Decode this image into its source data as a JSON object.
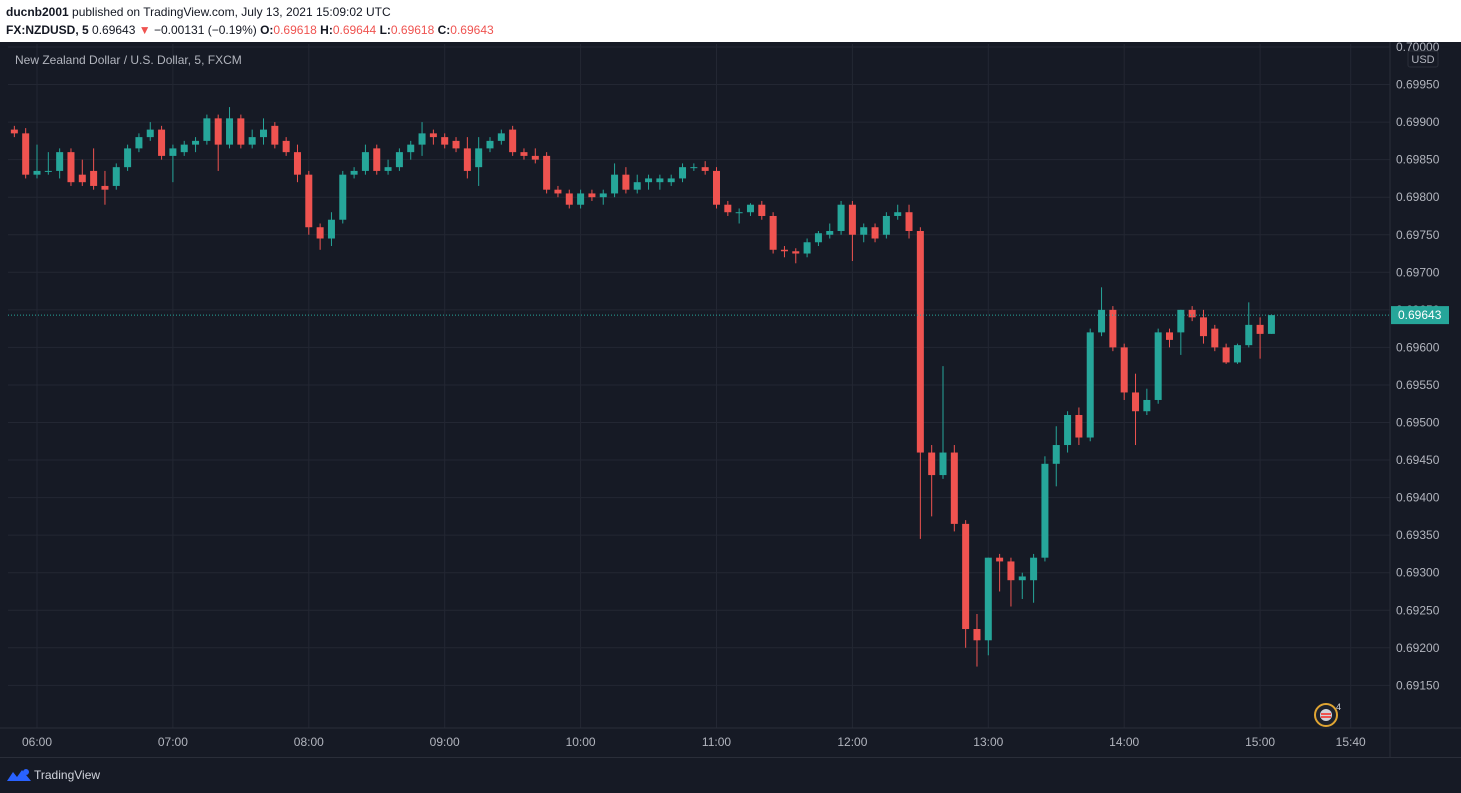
{
  "header": {
    "author": "ducnb2001",
    "published_text": " published on TradingView.com, July 13, 2021 15:09:02 UTC",
    "symbol_interval": "FX:NZDUSD, 5",
    "last_price": "0.69643",
    "change_arrow": "▼",
    "change": "−0.00131 (−0.19%)",
    "o_label": "O:",
    "o_value": "0.69618",
    "h_label": "H:",
    "h_value": "0.69644",
    "l_label": "L:",
    "l_value": "0.69618",
    "c_label": "C:",
    "c_value": "0.69643"
  },
  "chart_title": "New Zealand Dollar / U.S. Dollar, 5, FXCM",
  "footer": {
    "brand": "TradingView"
  },
  "events_count": "4",
  "colors": {
    "background": "#161a25",
    "grid": "#232733",
    "up": "#26a69a",
    "down": "#ef5350",
    "axis_text": "#b2b5be",
    "last_price_badge": "#26a69a"
  },
  "chart_data": {
    "type": "candlestick",
    "title": "New Zealand Dollar / U.S. Dollar, 5, FXCM",
    "symbol": "FX:NZDUSD",
    "interval_minutes": 5,
    "y_axis_unit": "USD",
    "ylim": [
      0.6911,
      0.7
    ],
    "y_ticks": [
      "0.70000",
      "0.69950",
      "0.69900",
      "0.69850",
      "0.69800",
      "0.69750",
      "0.69700",
      "0.69650",
      "0.69600",
      "0.69550",
      "0.69500",
      "0.69450",
      "0.69400",
      "0.69350",
      "0.69300",
      "0.69250",
      "0.69200",
      "0.69150"
    ],
    "x_start": "05:50",
    "x_ticks": [
      "06:00",
      "07:00",
      "08:00",
      "09:00",
      "10:00",
      "11:00",
      "12:00",
      "13:00",
      "14:00",
      "15:00",
      "15:40"
    ],
    "last_price": "0.69643",
    "grid": true,
    "candles": [
      {
        "t": "05:50",
        "o": 0.6989,
        "h": 0.69895,
        "l": 0.6988,
        "c": 0.69885
      },
      {
        "t": "05:55",
        "o": 0.69885,
        "h": 0.69892,
        "l": 0.69825,
        "c": 0.6983
      },
      {
        "t": "06:00",
        "o": 0.6983,
        "h": 0.6987,
        "l": 0.69825,
        "c": 0.69835
      },
      {
        "t": "06:05",
        "o": 0.69835,
        "h": 0.6986,
        "l": 0.6983,
        "c": 0.69835
      },
      {
        "t": "06:10",
        "o": 0.69835,
        "h": 0.69865,
        "l": 0.69825,
        "c": 0.6986
      },
      {
        "t": "06:15",
        "o": 0.6986,
        "h": 0.69865,
        "l": 0.69815,
        "c": 0.6982
      },
      {
        "t": "06:20",
        "o": 0.6983,
        "h": 0.6985,
        "l": 0.69815,
        "c": 0.6982
      },
      {
        "t": "06:25",
        "o": 0.69835,
        "h": 0.69865,
        "l": 0.6981,
        "c": 0.69815
      },
      {
        "t": "06:30",
        "o": 0.69815,
        "h": 0.69835,
        "l": 0.6979,
        "c": 0.6981
      },
      {
        "t": "06:35",
        "o": 0.69815,
        "h": 0.69845,
        "l": 0.6981,
        "c": 0.6984
      },
      {
        "t": "06:40",
        "o": 0.6984,
        "h": 0.6987,
        "l": 0.69835,
        "c": 0.69865
      },
      {
        "t": "06:45",
        "o": 0.69865,
        "h": 0.69885,
        "l": 0.6986,
        "c": 0.6988
      },
      {
        "t": "06:50",
        "o": 0.6988,
        "h": 0.699,
        "l": 0.69875,
        "c": 0.6989
      },
      {
        "t": "06:55",
        "o": 0.6989,
        "h": 0.69895,
        "l": 0.6985,
        "c": 0.69855
      },
      {
        "t": "07:00",
        "o": 0.69855,
        "h": 0.6987,
        "l": 0.6982,
        "c": 0.69865
      },
      {
        "t": "07:05",
        "o": 0.6986,
        "h": 0.69875,
        "l": 0.69855,
        "c": 0.6987
      },
      {
        "t": "07:10",
        "o": 0.6987,
        "h": 0.6988,
        "l": 0.6986,
        "c": 0.69875
      },
      {
        "t": "07:15",
        "o": 0.69875,
        "h": 0.6991,
        "l": 0.6987,
        "c": 0.69905
      },
      {
        "t": "07:20",
        "o": 0.69905,
        "h": 0.6991,
        "l": 0.69835,
        "c": 0.6987
      },
      {
        "t": "07:25",
        "o": 0.6987,
        "h": 0.6992,
        "l": 0.69865,
        "c": 0.69905
      },
      {
        "t": "07:30",
        "o": 0.69905,
        "h": 0.6991,
        "l": 0.69865,
        "c": 0.6987
      },
      {
        "t": "07:35",
        "o": 0.6987,
        "h": 0.6989,
        "l": 0.69865,
        "c": 0.6988
      },
      {
        "t": "07:40",
        "o": 0.6988,
        "h": 0.69905,
        "l": 0.6987,
        "c": 0.6989
      },
      {
        "t": "07:45",
        "o": 0.69895,
        "h": 0.699,
        "l": 0.69865,
        "c": 0.6987
      },
      {
        "t": "07:50",
        "o": 0.69875,
        "h": 0.6988,
        "l": 0.69855,
        "c": 0.6986
      },
      {
        "t": "07:55",
        "o": 0.6986,
        "h": 0.6987,
        "l": 0.6982,
        "c": 0.6983
      },
      {
        "t": "08:00",
        "o": 0.6983,
        "h": 0.69835,
        "l": 0.6975,
        "c": 0.6976
      },
      {
        "t": "08:05",
        "o": 0.6976,
        "h": 0.69765,
        "l": 0.6973,
        "c": 0.69745
      },
      {
        "t": "08:10",
        "o": 0.69745,
        "h": 0.6978,
        "l": 0.69735,
        "c": 0.6977
      },
      {
        "t": "08:15",
        "o": 0.6977,
        "h": 0.69835,
        "l": 0.69765,
        "c": 0.6983
      },
      {
        "t": "08:20",
        "o": 0.6983,
        "h": 0.6984,
        "l": 0.69825,
        "c": 0.69835
      },
      {
        "t": "08:25",
        "o": 0.69835,
        "h": 0.6987,
        "l": 0.6983,
        "c": 0.6986
      },
      {
        "t": "08:30",
        "o": 0.69865,
        "h": 0.6987,
        "l": 0.6983,
        "c": 0.69835
      },
      {
        "t": "08:35",
        "o": 0.69835,
        "h": 0.6985,
        "l": 0.6983,
        "c": 0.6984
      },
      {
        "t": "08:40",
        "o": 0.6984,
        "h": 0.69865,
        "l": 0.69835,
        "c": 0.6986
      },
      {
        "t": "08:45",
        "o": 0.6986,
        "h": 0.69875,
        "l": 0.6985,
        "c": 0.6987
      },
      {
        "t": "08:50",
        "o": 0.6987,
        "h": 0.699,
        "l": 0.69855,
        "c": 0.69885
      },
      {
        "t": "08:55",
        "o": 0.69885,
        "h": 0.6989,
        "l": 0.6987,
        "c": 0.6988
      },
      {
        "t": "09:00",
        "o": 0.6988,
        "h": 0.69885,
        "l": 0.69865,
        "c": 0.6987
      },
      {
        "t": "09:05",
        "o": 0.69875,
        "h": 0.6988,
        "l": 0.6986,
        "c": 0.69865
      },
      {
        "t": "09:10",
        "o": 0.69865,
        "h": 0.6988,
        "l": 0.69825,
        "c": 0.69835
      },
      {
        "t": "09:15",
        "o": 0.6984,
        "h": 0.6988,
        "l": 0.69815,
        "c": 0.69865
      },
      {
        "t": "09:20",
        "o": 0.69865,
        "h": 0.6988,
        "l": 0.6986,
        "c": 0.69875
      },
      {
        "t": "09:25",
        "o": 0.69875,
        "h": 0.6989,
        "l": 0.6987,
        "c": 0.69885
      },
      {
        "t": "09:30",
        "o": 0.6989,
        "h": 0.69895,
        "l": 0.69855,
        "c": 0.6986
      },
      {
        "t": "09:35",
        "o": 0.6986,
        "h": 0.69865,
        "l": 0.6985,
        "c": 0.69855
      },
      {
        "t": "09:40",
        "o": 0.69855,
        "h": 0.69865,
        "l": 0.69845,
        "c": 0.6985
      },
      {
        "t": "09:45",
        "o": 0.69855,
        "h": 0.6986,
        "l": 0.69805,
        "c": 0.6981
      },
      {
        "t": "09:50",
        "o": 0.6981,
        "h": 0.69815,
        "l": 0.698,
        "c": 0.69805
      },
      {
        "t": "09:55",
        "o": 0.69805,
        "h": 0.6981,
        "l": 0.69785,
        "c": 0.6979
      },
      {
        "t": "10:00",
        "o": 0.6979,
        "h": 0.6981,
        "l": 0.69785,
        "c": 0.69805
      },
      {
        "t": "10:05",
        "o": 0.69805,
        "h": 0.6981,
        "l": 0.69795,
        "c": 0.698
      },
      {
        "t": "10:10",
        "o": 0.698,
        "h": 0.6981,
        "l": 0.6979,
        "c": 0.69805
      },
      {
        "t": "10:15",
        "o": 0.69805,
        "h": 0.69845,
        "l": 0.698,
        "c": 0.6983
      },
      {
        "t": "10:20",
        "o": 0.6983,
        "h": 0.6984,
        "l": 0.69805,
        "c": 0.6981
      },
      {
        "t": "10:25",
        "o": 0.6981,
        "h": 0.6983,
        "l": 0.69805,
        "c": 0.6982
      },
      {
        "t": "10:30",
        "o": 0.6982,
        "h": 0.6983,
        "l": 0.6981,
        "c": 0.69825
      },
      {
        "t": "10:35",
        "o": 0.6982,
        "h": 0.6983,
        "l": 0.6981,
        "c": 0.69825
      },
      {
        "t": "10:40",
        "o": 0.6982,
        "h": 0.6983,
        "l": 0.69815,
        "c": 0.69825
      },
      {
        "t": "10:45",
        "o": 0.69825,
        "h": 0.69845,
        "l": 0.6982,
        "c": 0.6984
      },
      {
        "t": "10:50",
        "o": 0.6984,
        "h": 0.69845,
        "l": 0.69835,
        "c": 0.6984
      },
      {
        "t": "10:55",
        "o": 0.6984,
        "h": 0.69848,
        "l": 0.6983,
        "c": 0.69835
      },
      {
        "t": "11:00",
        "o": 0.69835,
        "h": 0.6984,
        "l": 0.69785,
        "c": 0.6979
      },
      {
        "t": "11:05",
        "o": 0.6979,
        "h": 0.69795,
        "l": 0.69775,
        "c": 0.6978
      },
      {
        "t": "11:10",
        "o": 0.6978,
        "h": 0.69785,
        "l": 0.69765,
        "c": 0.6978
      },
      {
        "t": "11:15",
        "o": 0.6978,
        "h": 0.69792,
        "l": 0.69775,
        "c": 0.6979
      },
      {
        "t": "11:20",
        "o": 0.6979,
        "h": 0.69795,
        "l": 0.6977,
        "c": 0.69775
      },
      {
        "t": "11:25",
        "o": 0.69775,
        "h": 0.6978,
        "l": 0.69725,
        "c": 0.6973
      },
      {
        "t": "11:30",
        "o": 0.6973,
        "h": 0.69735,
        "l": 0.6972,
        "c": 0.69728
      },
      {
        "t": "11:35",
        "o": 0.69728,
        "h": 0.69732,
        "l": 0.69712,
        "c": 0.69725
      },
      {
        "t": "11:40",
        "o": 0.69725,
        "h": 0.69745,
        "l": 0.6972,
        "c": 0.6974
      },
      {
        "t": "11:45",
        "o": 0.6974,
        "h": 0.69755,
        "l": 0.69735,
        "c": 0.69752
      },
      {
        "t": "11:50",
        "o": 0.6975,
        "h": 0.69765,
        "l": 0.69745,
        "c": 0.69755
      },
      {
        "t": "11:55",
        "o": 0.69755,
        "h": 0.69795,
        "l": 0.6975,
        "c": 0.6979
      },
      {
        "t": "12:00",
        "o": 0.6979,
        "h": 0.69795,
        "l": 0.69715,
        "c": 0.6975
      },
      {
        "t": "12:05",
        "o": 0.6975,
        "h": 0.69765,
        "l": 0.6974,
        "c": 0.6976
      },
      {
        "t": "12:10",
        "o": 0.6976,
        "h": 0.69765,
        "l": 0.6974,
        "c": 0.69745
      },
      {
        "t": "12:15",
        "o": 0.6975,
        "h": 0.6978,
        "l": 0.69745,
        "c": 0.69775
      },
      {
        "t": "12:20",
        "o": 0.69775,
        "h": 0.6979,
        "l": 0.6977,
        "c": 0.6978
      },
      {
        "t": "12:25",
        "o": 0.6978,
        "h": 0.6979,
        "l": 0.69745,
        "c": 0.69755
      },
      {
        "t": "12:30",
        "o": 0.69755,
        "h": 0.6976,
        "l": 0.69345,
        "c": 0.6946
      },
      {
        "t": "12:35",
        "o": 0.6946,
        "h": 0.6947,
        "l": 0.69375,
        "c": 0.6943
      },
      {
        "t": "12:40",
        "o": 0.6943,
        "h": 0.69575,
        "l": 0.69425,
        "c": 0.6946
      },
      {
        "t": "12:45",
        "o": 0.6946,
        "h": 0.6947,
        "l": 0.69355,
        "c": 0.69365
      },
      {
        "t": "12:50",
        "o": 0.69365,
        "h": 0.6937,
        "l": 0.692,
        "c": 0.69225
      },
      {
        "t": "12:55",
        "o": 0.69225,
        "h": 0.69245,
        "l": 0.69175,
        "c": 0.6921
      },
      {
        "t": "13:00",
        "o": 0.6921,
        "h": 0.6932,
        "l": 0.6919,
        "c": 0.6932
      },
      {
        "t": "13:05",
        "o": 0.6932,
        "h": 0.69325,
        "l": 0.69275,
        "c": 0.69315
      },
      {
        "t": "13:10",
        "o": 0.69315,
        "h": 0.6932,
        "l": 0.69255,
        "c": 0.6929
      },
      {
        "t": "13:15",
        "o": 0.6929,
        "h": 0.693,
        "l": 0.69265,
        "c": 0.69295
      },
      {
        "t": "13:20",
        "o": 0.6929,
        "h": 0.69325,
        "l": 0.6926,
        "c": 0.6932
      },
      {
        "t": "13:25",
        "o": 0.6932,
        "h": 0.69455,
        "l": 0.69315,
        "c": 0.69445
      },
      {
        "t": "13:30",
        "o": 0.69445,
        "h": 0.69495,
        "l": 0.69415,
        "c": 0.6947
      },
      {
        "t": "13:35",
        "o": 0.6947,
        "h": 0.69515,
        "l": 0.6946,
        "c": 0.6951
      },
      {
        "t": "13:40",
        "o": 0.6951,
        "h": 0.6952,
        "l": 0.6947,
        "c": 0.6948
      },
      {
        "t": "13:45",
        "o": 0.6948,
        "h": 0.69625,
        "l": 0.69475,
        "c": 0.6962
      },
      {
        "t": "13:50",
        "o": 0.6962,
        "h": 0.6968,
        "l": 0.69615,
        "c": 0.6965
      },
      {
        "t": "13:55",
        "o": 0.6965,
        "h": 0.69655,
        "l": 0.69595,
        "c": 0.696
      },
      {
        "t": "14:00",
        "o": 0.696,
        "h": 0.69605,
        "l": 0.6953,
        "c": 0.6954
      },
      {
        "t": "14:05",
        "o": 0.6954,
        "h": 0.69565,
        "l": 0.6947,
        "c": 0.69515
      },
      {
        "t": "14:10",
        "o": 0.69515,
        "h": 0.69545,
        "l": 0.6951,
        "c": 0.6953
      },
      {
        "t": "14:15",
        "o": 0.6953,
        "h": 0.69625,
        "l": 0.69525,
        "c": 0.6962
      },
      {
        "t": "14:20",
        "o": 0.6962,
        "h": 0.69625,
        "l": 0.696,
        "c": 0.6961
      },
      {
        "t": "14:25",
        "o": 0.6962,
        "h": 0.6965,
        "l": 0.6959,
        "c": 0.6965
      },
      {
        "t": "14:30",
        "o": 0.6965,
        "h": 0.69655,
        "l": 0.69635,
        "c": 0.6964
      },
      {
        "t": "14:35",
        "o": 0.6964,
        "h": 0.6965,
        "l": 0.69605,
        "c": 0.69615
      },
      {
        "t": "14:40",
        "o": 0.69625,
        "h": 0.6963,
        "l": 0.69595,
        "c": 0.696
      },
      {
        "t": "14:45",
        "o": 0.696,
        "h": 0.69605,
        "l": 0.69578,
        "c": 0.6958
      },
      {
        "t": "14:50",
        "o": 0.6958,
        "h": 0.69605,
        "l": 0.69578,
        "c": 0.69603
      },
      {
        "t": "14:55",
        "o": 0.69603,
        "h": 0.6966,
        "l": 0.696,
        "c": 0.6963
      },
      {
        "t": "15:00",
        "o": 0.6963,
        "h": 0.6964,
        "l": 0.69585,
        "c": 0.69618
      },
      {
        "t": "15:05",
        "o": 0.69618,
        "h": 0.69644,
        "l": 0.69618,
        "c": 0.69643
      }
    ]
  }
}
